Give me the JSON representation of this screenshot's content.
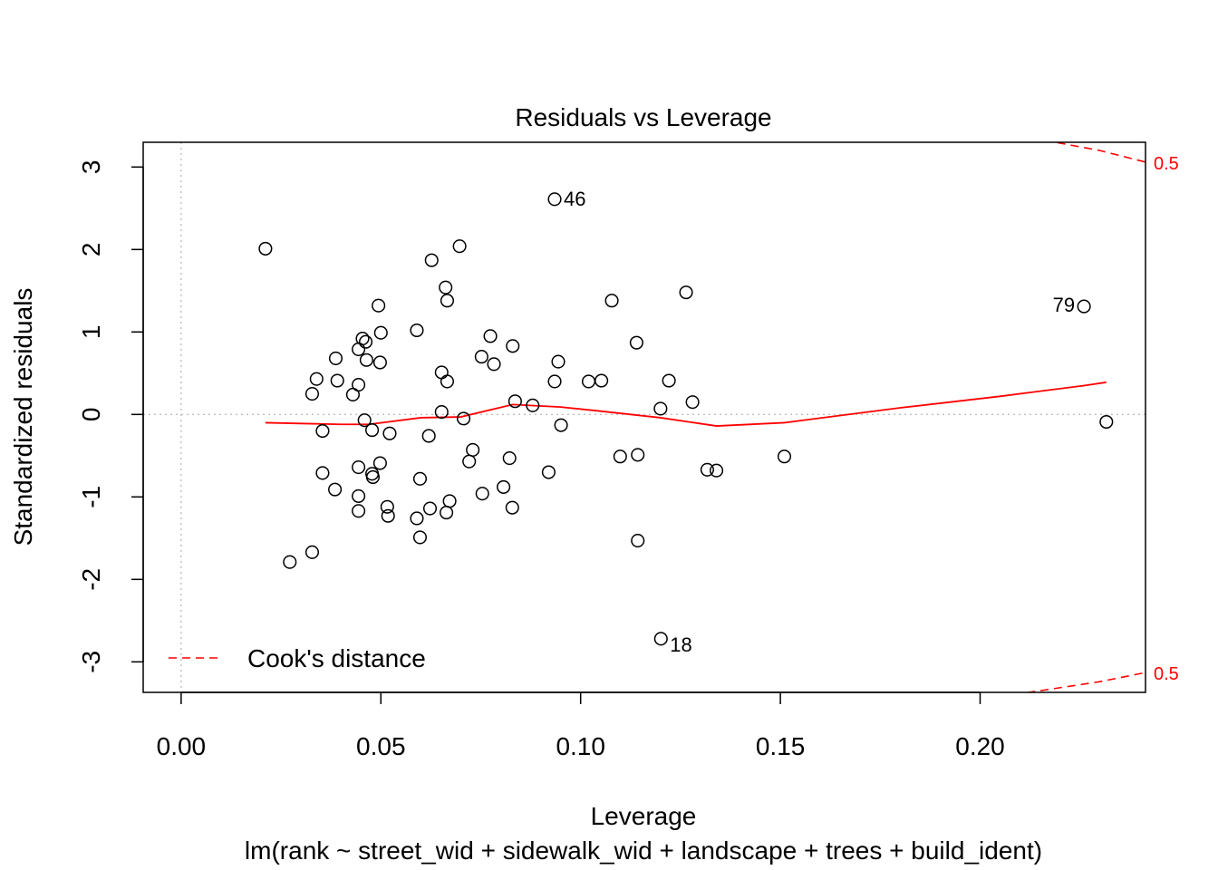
{
  "chart_data": {
    "type": "scatter",
    "title": "Residuals vs Leverage",
    "xlabel": "Leverage",
    "subtitle": "lm(rank ~ street_wid + sidewalk_wid + landscape + trees + build_ident)",
    "ylabel": "Standardized residuals",
    "xlim": [
      -0.0095,
      0.2414
    ],
    "ylim": [
      -3.37,
      3.3
    ],
    "x_ticks": [
      0.0,
      0.05,
      0.1,
      0.15,
      0.2
    ],
    "x_tick_labels": [
      "0.00",
      "0.05",
      "0.10",
      "0.15",
      "0.20"
    ],
    "y_ticks": [
      -3,
      -2,
      -1,
      0,
      1,
      2,
      3
    ],
    "y_tick_labels": [
      "-3",
      "-2",
      "-1",
      "0",
      "1",
      "2",
      "3"
    ],
    "grid": false,
    "reference_lines": {
      "x": 0,
      "y": 0,
      "style": "dotted",
      "color": "#bebebe"
    },
    "points": [
      {
        "x": 0.0211,
        "y": 2.01
      },
      {
        "x": 0.0272,
        "y": -1.79
      },
      {
        "x": 0.0328,
        "y": -1.67
      },
      {
        "x": 0.0328,
        "y": 0.25
      },
      {
        "x": 0.0339,
        "y": 0.43
      },
      {
        "x": 0.0354,
        "y": -0.2
      },
      {
        "x": 0.0354,
        "y": -0.71
      },
      {
        "x": 0.0385,
        "y": -0.91
      },
      {
        "x": 0.0387,
        "y": 0.68
      },
      {
        "x": 0.0391,
        "y": 0.41
      },
      {
        "x": 0.043,
        "y": 0.24
      },
      {
        "x": 0.0444,
        "y": 0.36
      },
      {
        "x": 0.0444,
        "y": 0.79
      },
      {
        "x": 0.0444,
        "y": -0.64
      },
      {
        "x": 0.0444,
        "y": -0.99
      },
      {
        "x": 0.0444,
        "y": -1.17
      },
      {
        "x": 0.0454,
        "y": 0.92
      },
      {
        "x": 0.0459,
        "y": -0.07
      },
      {
        "x": 0.0462,
        "y": 0.88
      },
      {
        "x": 0.0464,
        "y": 0.66
      },
      {
        "x": 0.0478,
        "y": -0.19
      },
      {
        "x": 0.0478,
        "y": -0.72
      },
      {
        "x": 0.048,
        "y": -0.76
      },
      {
        "x": 0.0494,
        "y": 1.32
      },
      {
        "x": 0.0498,
        "y": -0.59
      },
      {
        "x": 0.0498,
        "y": 0.63
      },
      {
        "x": 0.05,
        "y": 0.99
      },
      {
        "x": 0.0516,
        "y": -1.12
      },
      {
        "x": 0.0518,
        "y": -1.23
      },
      {
        "x": 0.0522,
        "y": -0.23
      },
      {
        "x": 0.059,
        "y": 1.02
      },
      {
        "x": 0.059,
        "y": -1.26
      },
      {
        "x": 0.0598,
        "y": -0.78
      },
      {
        "x": 0.0598,
        "y": -1.49
      },
      {
        "x": 0.062,
        "y": -0.26
      },
      {
        "x": 0.0623,
        "y": -1.14
      },
      {
        "x": 0.0627,
        "y": 1.87
      },
      {
        "x": 0.0652,
        "y": 0.51
      },
      {
        "x": 0.0652,
        "y": 0.03
      },
      {
        "x": 0.0662,
        "y": 1.54
      },
      {
        "x": 0.0664,
        "y": -1.19
      },
      {
        "x": 0.0666,
        "y": 1.38
      },
      {
        "x": 0.0666,
        "y": 0.4
      },
      {
        "x": 0.0672,
        "y": -1.05
      },
      {
        "x": 0.0697,
        "y": 2.04
      },
      {
        "x": 0.0707,
        "y": -0.05
      },
      {
        "x": 0.0721,
        "y": -0.57
      },
      {
        "x": 0.073,
        "y": -0.43
      },
      {
        "x": 0.0752,
        "y": 0.7
      },
      {
        "x": 0.0754,
        "y": -0.96
      },
      {
        "x": 0.0774,
        "y": 0.95
      },
      {
        "x": 0.0783,
        "y": 0.61
      },
      {
        "x": 0.0807,
        "y": -0.88
      },
      {
        "x": 0.0822,
        "y": -0.53
      },
      {
        "x": 0.0829,
        "y": -1.13
      },
      {
        "x": 0.083,
        "y": 0.83
      },
      {
        "x": 0.0836,
        "y": 0.16
      },
      {
        "x": 0.088,
        "y": 0.11
      },
      {
        "x": 0.092,
        "y": -0.7
      },
      {
        "x": 0.0935,
        "y": 0.4
      },
      {
        "x": 0.0935,
        "y": 2.61,
        "label": "46"
      },
      {
        "x": 0.0944,
        "y": 0.64
      },
      {
        "x": 0.0951,
        "y": -0.13
      },
      {
        "x": 0.102,
        "y": 0.4
      },
      {
        "x": 0.1052,
        "y": 0.41
      },
      {
        "x": 0.1078,
        "y": 1.38
      },
      {
        "x": 0.1099,
        "y": -0.51
      },
      {
        "x": 0.114,
        "y": 0.87
      },
      {
        "x": 0.1143,
        "y": -0.49
      },
      {
        "x": 0.1143,
        "y": -1.53
      },
      {
        "x": 0.12,
        "y": 0.07
      },
      {
        "x": 0.1201,
        "y": -2.72,
        "label": "18"
      },
      {
        "x": 0.1221,
        "y": 0.41
      },
      {
        "x": 0.1264,
        "y": 1.48
      },
      {
        "x": 0.128,
        "y": 0.15
      },
      {
        "x": 0.1317,
        "y": -0.67
      },
      {
        "x": 0.134,
        "y": -0.68
      },
      {
        "x": 0.151,
        "y": -0.51
      },
      {
        "x": 0.226,
        "y": 1.31,
        "label": "79"
      },
      {
        "x": 0.2316,
        "y": -0.09
      }
    ],
    "smoother": {
      "color": "#ff0000",
      "x": [
        0.0211,
        0.03,
        0.04,
        0.047,
        0.06,
        0.07,
        0.083,
        0.095,
        0.105,
        0.12,
        0.134,
        0.151,
        0.18,
        0.205,
        0.226,
        0.2316
      ],
      "y": [
        -0.1,
        -0.11,
        -0.12,
        -0.12,
        -0.04,
        -0.03,
        0.12,
        0.09,
        0.04,
        -0.04,
        -0.14,
        -0.1,
        0.08,
        0.22,
        0.35,
        0.39
      ]
    },
    "cooks_distance": {
      "color": "#ff0000",
      "style": "dashed",
      "contour_labels": [
        "0.5",
        "0.5"
      ],
      "upper": {
        "x": [
          0.216,
          0.22,
          0.23,
          0.2414
        ],
        "y": [
          3.33,
          3.29,
          3.2,
          3.06
        ]
      },
      "lower": {
        "x": [
          0.205,
          0.215,
          0.23,
          0.2414
        ],
        "y": [
          -3.42,
          -3.35,
          -3.24,
          -3.13
        ]
      }
    },
    "legend": {
      "position": "bottom-left",
      "entries": [
        {
          "label": "Cook's distance",
          "style": "dashed",
          "color": "#ff0000"
        }
      ]
    }
  }
}
